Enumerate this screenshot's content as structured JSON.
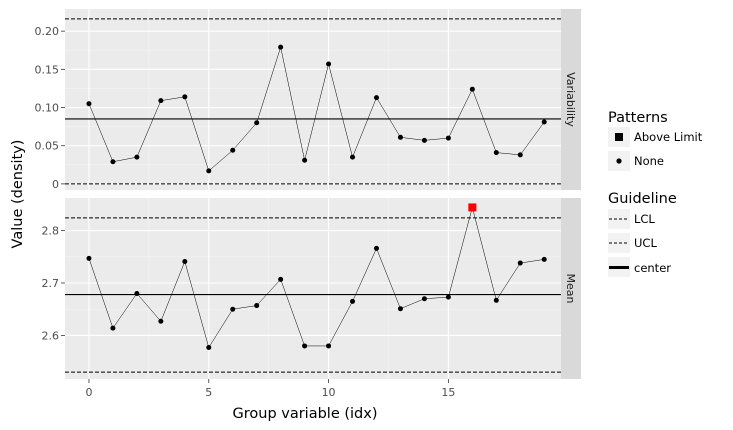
{
  "chart_data": {
    "type": "line",
    "xlabel": "Group variable (idx)",
    "ylabel": "Value (density)",
    "x": [
      0,
      1,
      2,
      3,
      4,
      5,
      6,
      7,
      8,
      9,
      10,
      11,
      12,
      13,
      14,
      15,
      16,
      17,
      18,
      19
    ],
    "xlim": [
      -1,
      19.7
    ],
    "xticks": [
      0,
      5,
      10,
      15
    ],
    "xtick_labels": [
      "0",
      "5",
      "10",
      "15"
    ],
    "facets": [
      {
        "strip": "Variability",
        "ylim": [
          -0.008,
          0.229
        ],
        "yticks": [
          0,
          0.05,
          0.1,
          0.15,
          0.2
        ],
        "ytick_labels": [
          "0",
          "0.05",
          "0.10",
          "0.15",
          "0.20"
        ],
        "values": [
          0.105,
          0.029,
          0.035,
          0.109,
          0.114,
          0.017,
          0.044,
          0.08,
          0.179,
          0.031,
          0.157,
          0.035,
          0.113,
          0.061,
          0.057,
          0.06,
          0.124,
          0.041,
          0.038,
          0.081
        ],
        "patterns": [
          "None",
          "None",
          "None",
          "None",
          "None",
          "None",
          "None",
          "None",
          "None",
          "None",
          "None",
          "None",
          "None",
          "None",
          "None",
          "None",
          "None",
          "None",
          "None",
          "None"
        ],
        "center": 0.085,
        "lcl": 0.0,
        "ucl": 0.216
      },
      {
        "strip": "Mean",
        "ylim": [
          2.517,
          2.862
        ],
        "yticks": [
          2.6,
          2.7,
          2.8
        ],
        "ytick_labels": [
          "2.6",
          "2.7",
          "2.8"
        ],
        "values": [
          2.747,
          2.614,
          2.68,
          2.627,
          2.741,
          2.577,
          2.65,
          2.657,
          2.707,
          2.58,
          2.58,
          2.665,
          2.766,
          2.651,
          2.67,
          2.673,
          2.844,
          2.667,
          2.738,
          2.745
        ],
        "patterns": [
          "None",
          "None",
          "None",
          "None",
          "None",
          "None",
          "None",
          "None",
          "None",
          "None",
          "None",
          "None",
          "None",
          "None",
          "None",
          "None",
          "Above Limit",
          "None",
          "None",
          "None"
        ],
        "center": 2.678,
        "lcl": 2.53,
        "ucl": 2.824
      }
    ],
    "legend": {
      "patterns_title": "Patterns",
      "patterns": [
        "Above Limit",
        "None"
      ],
      "guideline_title": "Guideline",
      "guidelines": [
        "LCL",
        "UCL",
        "center"
      ],
      "position": "right"
    }
  },
  "colors": {
    "above_limit": "#ff0000",
    "normal_point": "#000000"
  }
}
